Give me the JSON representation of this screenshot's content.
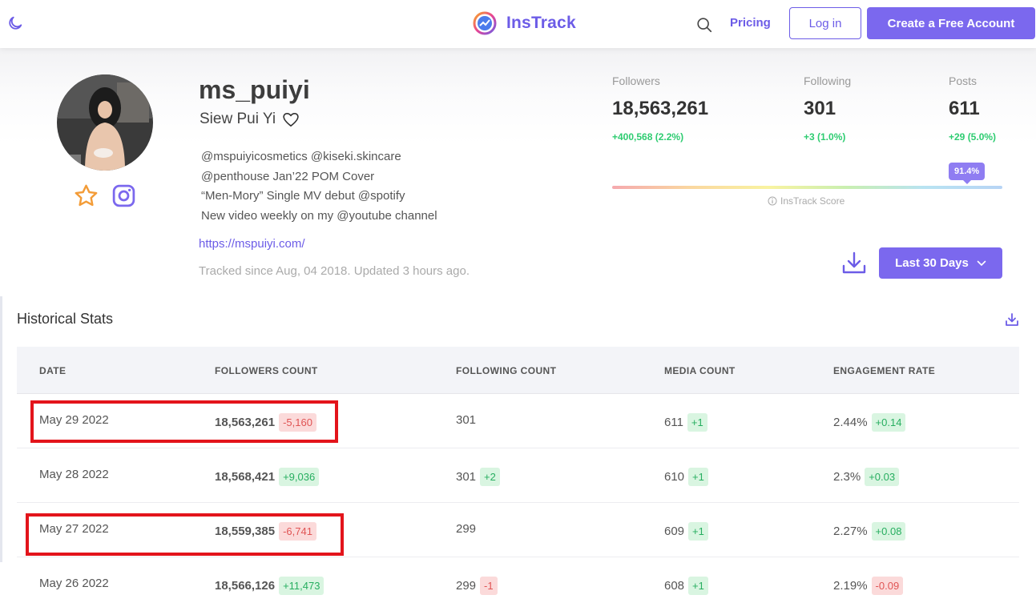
{
  "header": {
    "brand": "InsTrack",
    "pricing": "Pricing",
    "login": "Log in",
    "signup": "Create a Free Account",
    "icons": [
      "moon-icon",
      "instrack-logo-icon",
      "search-icon"
    ]
  },
  "profile": {
    "username": "ms_puiyi",
    "full_name": "Siew Pui Yi",
    "bio": [
      "@mspuiyicosmetics @kiseki.skincare",
      "@penthouse Jan’22 POM Cover",
      "“Men-Mory” Single MV debut @spotify",
      "New video weekly on my @youtube channel"
    ],
    "url": "https://mspuiyi.com/",
    "tracked": "Tracked since Aug, 04 2018. Updated 3 hours ago."
  },
  "stats": {
    "followers": {
      "label": "Followers",
      "value": "18,563,261",
      "change": "+400,568 (2.2%)"
    },
    "following": {
      "label": "Following",
      "value": "301",
      "change": "+3 (1.0%)"
    },
    "posts": {
      "label": "Posts",
      "value": "611",
      "change": "+29 (5.0%)"
    }
  },
  "score": {
    "badge": "91.4%",
    "value": 0.914,
    "label": "InsTrack Score"
  },
  "range_button": "Last 30 Days",
  "historical": {
    "title": "Historical Stats",
    "columns": [
      "DATE",
      "FOLLOWERS COUNT",
      "FOLLOWING COUNT",
      "MEDIA COUNT",
      "ENGAGEMENT RATE"
    ],
    "rows": [
      {
        "date": "May 29 2022",
        "followers": "18,563,261",
        "followers_delta": "-5,160",
        "followers_sign": "neg",
        "following": "301",
        "following_delta": "",
        "following_sign": "",
        "media": "611",
        "media_delta": "+1",
        "media_sign": "pos",
        "engagement": "2.44%",
        "engagement_delta": "+0.14",
        "engagement_sign": "pos",
        "highlighted": true
      },
      {
        "date": "May 28 2022",
        "followers": "18,568,421",
        "followers_delta": "+9,036",
        "followers_sign": "pos",
        "following": "301",
        "following_delta": "+2",
        "following_sign": "pos",
        "media": "610",
        "media_delta": "+1",
        "media_sign": "pos",
        "engagement": "2.3%",
        "engagement_delta": "+0.03",
        "engagement_sign": "pos",
        "highlighted": false
      },
      {
        "date": "May 27 2022",
        "followers": "18,559,385",
        "followers_delta": "-6,741",
        "followers_sign": "neg",
        "following": "299",
        "following_delta": "",
        "following_sign": "",
        "media": "609",
        "media_delta": "+1",
        "media_sign": "pos",
        "engagement": "2.27%",
        "engagement_delta": "+0.08",
        "engagement_sign": "pos",
        "highlighted": true
      },
      {
        "date": "May 26 2022",
        "followers": "18,566,126",
        "followers_delta": "+11,473",
        "followers_sign": "pos",
        "following": "299",
        "following_delta": "-1",
        "following_sign": "neg",
        "media": "608",
        "media_delta": "+1",
        "media_sign": "pos",
        "engagement": "2.19%",
        "engagement_delta": "-0.09",
        "engagement_sign": "neg",
        "highlighted": false
      }
    ]
  },
  "colors": {
    "accent": "#7b68ee",
    "positive": "#27ae60",
    "negative": "#e05555",
    "highlight": "#e3141b"
  }
}
